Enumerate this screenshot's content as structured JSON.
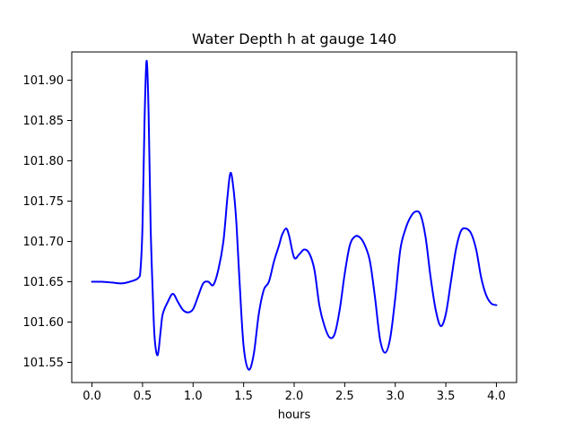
{
  "chart_data": {
    "type": "line",
    "title": "Water Depth h at gauge 140",
    "xlabel": "hours",
    "ylabel": "",
    "xlim": [
      -0.2,
      4.2
    ],
    "ylim": [
      101.525,
      101.935
    ],
    "xticks": [
      0.0,
      0.5,
      1.0,
      1.5,
      2.0,
      2.5,
      3.0,
      3.5,
      4.0
    ],
    "xtick_labels": [
      "0.0",
      "0.5",
      "1.0",
      "1.5",
      "2.0",
      "2.5",
      "3.0",
      "3.5",
      "4.0"
    ],
    "yticks": [
      101.55,
      101.6,
      101.65,
      101.7,
      101.75,
      101.8,
      101.85,
      101.9
    ],
    "ytick_labels": [
      "101.55",
      "101.60",
      "101.65",
      "101.70",
      "101.75",
      "101.80",
      "101.85",
      "101.90"
    ],
    "grid": false,
    "colors": {
      "line": "#0000ff"
    },
    "series": [
      {
        "points": [
          [
            0.0,
            101.65
          ],
          [
            0.1,
            101.65
          ],
          [
            0.2,
            101.649
          ],
          [
            0.3,
            101.648
          ],
          [
            0.4,
            101.651
          ],
          [
            0.46,
            101.655
          ],
          [
            0.48,
            101.665
          ],
          [
            0.5,
            101.72
          ],
          [
            0.52,
            101.85
          ],
          [
            0.54,
            101.924
          ],
          [
            0.56,
            101.86
          ],
          [
            0.58,
            101.72
          ],
          [
            0.6,
            101.64
          ],
          [
            0.62,
            101.58
          ],
          [
            0.65,
            101.559
          ],
          [
            0.68,
            101.59
          ],
          [
            0.7,
            101.61
          ],
          [
            0.75,
            101.625
          ],
          [
            0.8,
            101.635
          ],
          [
            0.85,
            101.625
          ],
          [
            0.9,
            101.615
          ],
          [
            0.95,
            101.612
          ],
          [
            1.0,
            101.616
          ],
          [
            1.05,
            101.632
          ],
          [
            1.1,
            101.648
          ],
          [
            1.15,
            101.65
          ],
          [
            1.2,
            101.646
          ],
          [
            1.25,
            101.665
          ],
          [
            1.3,
            101.7
          ],
          [
            1.34,
            101.755
          ],
          [
            1.37,
            101.785
          ],
          [
            1.4,
            101.765
          ],
          [
            1.43,
            101.72
          ],
          [
            1.46,
            101.65
          ],
          [
            1.5,
            101.57
          ],
          [
            1.55,
            101.541
          ],
          [
            1.6,
            101.56
          ],
          [
            1.65,
            101.61
          ],
          [
            1.7,
            101.64
          ],
          [
            1.75,
            101.65
          ],
          [
            1.8,
            101.675
          ],
          [
            1.85,
            101.695
          ],
          [
            1.88,
            101.708
          ],
          [
            1.92,
            101.716
          ],
          [
            1.95,
            101.707
          ],
          [
            2.0,
            101.68
          ],
          [
            2.05,
            101.684
          ],
          [
            2.1,
            101.69
          ],
          [
            2.15,
            101.685
          ],
          [
            2.2,
            101.665
          ],
          [
            2.25,
            101.62
          ],
          [
            2.3,
            101.595
          ],
          [
            2.35,
            101.581
          ],
          [
            2.4,
            101.585
          ],
          [
            2.45,
            101.615
          ],
          [
            2.5,
            101.66
          ],
          [
            2.55,
            101.695
          ],
          [
            2.6,
            101.706
          ],
          [
            2.65,
            101.705
          ],
          [
            2.7,
            101.695
          ],
          [
            2.75,
            101.675
          ],
          [
            2.8,
            101.63
          ],
          [
            2.85,
            101.578
          ],
          [
            2.9,
            101.562
          ],
          [
            2.95,
            101.58
          ],
          [
            3.0,
            101.63
          ],
          [
            3.05,
            101.69
          ],
          [
            3.1,
            101.715
          ],
          [
            3.15,
            101.73
          ],
          [
            3.2,
            101.737
          ],
          [
            3.25,
            101.733
          ],
          [
            3.3,
            101.705
          ],
          [
            3.35,
            101.655
          ],
          [
            3.4,
            101.615
          ],
          [
            3.45,
            101.595
          ],
          [
            3.5,
            101.61
          ],
          [
            3.55,
            101.65
          ],
          [
            3.6,
            101.69
          ],
          [
            3.65,
            101.713
          ],
          [
            3.7,
            101.716
          ],
          [
            3.75,
            101.71
          ],
          [
            3.8,
            101.69
          ],
          [
            3.85,
            101.655
          ],
          [
            3.9,
            101.633
          ],
          [
            3.95,
            101.623
          ],
          [
            4.0,
            101.621
          ]
        ]
      }
    ]
  }
}
